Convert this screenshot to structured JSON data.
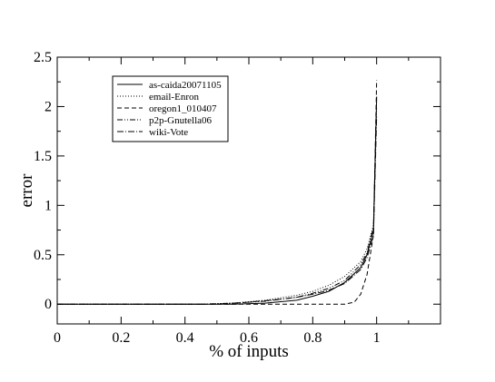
{
  "chart_data": {
    "type": "line",
    "title": "",
    "xlabel": "% of inputs",
    "ylabel": "error",
    "xlim": [
      0,
      1.2
    ],
    "ylim": [
      -0.2,
      2.5
    ],
    "x_ticks": [
      "0",
      "0.2",
      "0.4",
      "0.6",
      "0.8",
      "1"
    ],
    "x_tick_values": [
      0,
      0.2,
      0.4,
      0.6,
      0.8,
      1.0
    ],
    "y_ticks": [
      "0",
      "0.5",
      "1",
      "1.5",
      "2",
      "2.5"
    ],
    "y_tick_values": [
      0,
      0.5,
      1.0,
      1.5,
      2.0,
      2.5
    ],
    "grid": false,
    "legend_position": "top-left",
    "series": [
      {
        "name": "as-caida20071105",
        "style": "solid",
        "x": [
          0,
          0.55,
          0.65,
          0.75,
          0.8,
          0.85,
          0.9,
          0.95,
          0.97,
          0.99,
          1.0
        ],
        "y": [
          0,
          0,
          0.01,
          0.04,
          0.08,
          0.13,
          0.22,
          0.37,
          0.5,
          0.75,
          2.1
        ]
      },
      {
        "name": "email-Enron",
        "style": "dotted",
        "x": [
          0,
          0.45,
          0.55,
          0.65,
          0.75,
          0.8,
          0.85,
          0.9,
          0.95,
          0.97,
          0.99,
          1.0
        ],
        "y": [
          0,
          0,
          0.01,
          0.04,
          0.09,
          0.13,
          0.19,
          0.28,
          0.43,
          0.56,
          0.8,
          2.0
        ]
      },
      {
        "name": "oregon1_010407",
        "style": "dashed",
        "x": [
          0,
          0.9,
          0.93,
          0.95,
          0.97,
          0.99,
          1.0
        ],
        "y": [
          0,
          0,
          0.02,
          0.1,
          0.3,
          0.7,
          2.27
        ]
      },
      {
        "name": "p2p-Gnutella06",
        "style": "dash-dot-dot",
        "x": [
          0,
          0.45,
          0.55,
          0.65,
          0.75,
          0.8,
          0.85,
          0.9,
          0.95,
          0.97,
          0.99,
          1.0
        ],
        "y": [
          0,
          0,
          0.01,
          0.03,
          0.07,
          0.11,
          0.16,
          0.24,
          0.4,
          0.52,
          0.78,
          2.1
        ]
      },
      {
        "name": "wiki-Vote",
        "style": "dash-dot",
        "x": [
          0,
          0.5,
          0.6,
          0.7,
          0.75,
          0.8,
          0.85,
          0.9,
          0.95,
          0.97,
          0.99,
          1.0
        ],
        "y": [
          0,
          0,
          0.02,
          0.05,
          0.07,
          0.1,
          0.14,
          0.21,
          0.35,
          0.47,
          0.7,
          1.9
        ]
      }
    ]
  }
}
